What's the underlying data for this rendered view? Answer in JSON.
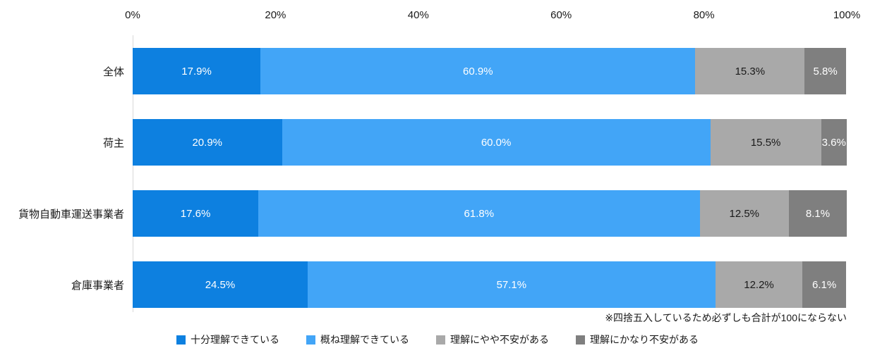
{
  "chart_data": {
    "type": "bar",
    "subtype": "horizontal-stacked-percentage",
    "title": "",
    "xlabel": "",
    "ylabel": "",
    "xlim": [
      0,
      100
    ],
    "grid": false,
    "legend_position": "bottom-center",
    "x_ticks": [
      "0%",
      "20%",
      "40%",
      "60%",
      "80%",
      "100%"
    ],
    "categories": [
      "全体",
      "荷主",
      "貨物自動車運送事業者",
      "倉庫事業者"
    ],
    "series": [
      {
        "name": "十分理解できている",
        "color": "#0d80e0",
        "label_color": "#ffffff",
        "values": [
          17.9,
          20.9,
          17.6,
          24.5
        ]
      },
      {
        "name": "概ね理解できている",
        "color": "#42a5f7",
        "label_color": "#ffffff",
        "values": [
          60.9,
          60.0,
          61.8,
          57.1
        ]
      },
      {
        "name": "理解にやや不安がある",
        "color": "#a9a9a9",
        "label_color": "#1a1a1a",
        "values": [
          15.3,
          15.5,
          12.5,
          12.2
        ]
      },
      {
        "name": "理解にかなり不安がある",
        "color": "#7f7f7f",
        "label_color": "#ffffff",
        "values": [
          5.8,
          3.6,
          8.1,
          6.1
        ]
      }
    ],
    "value_suffix": "%",
    "note": "※四捨五入しているため必ずしも合計が100にならない"
  }
}
